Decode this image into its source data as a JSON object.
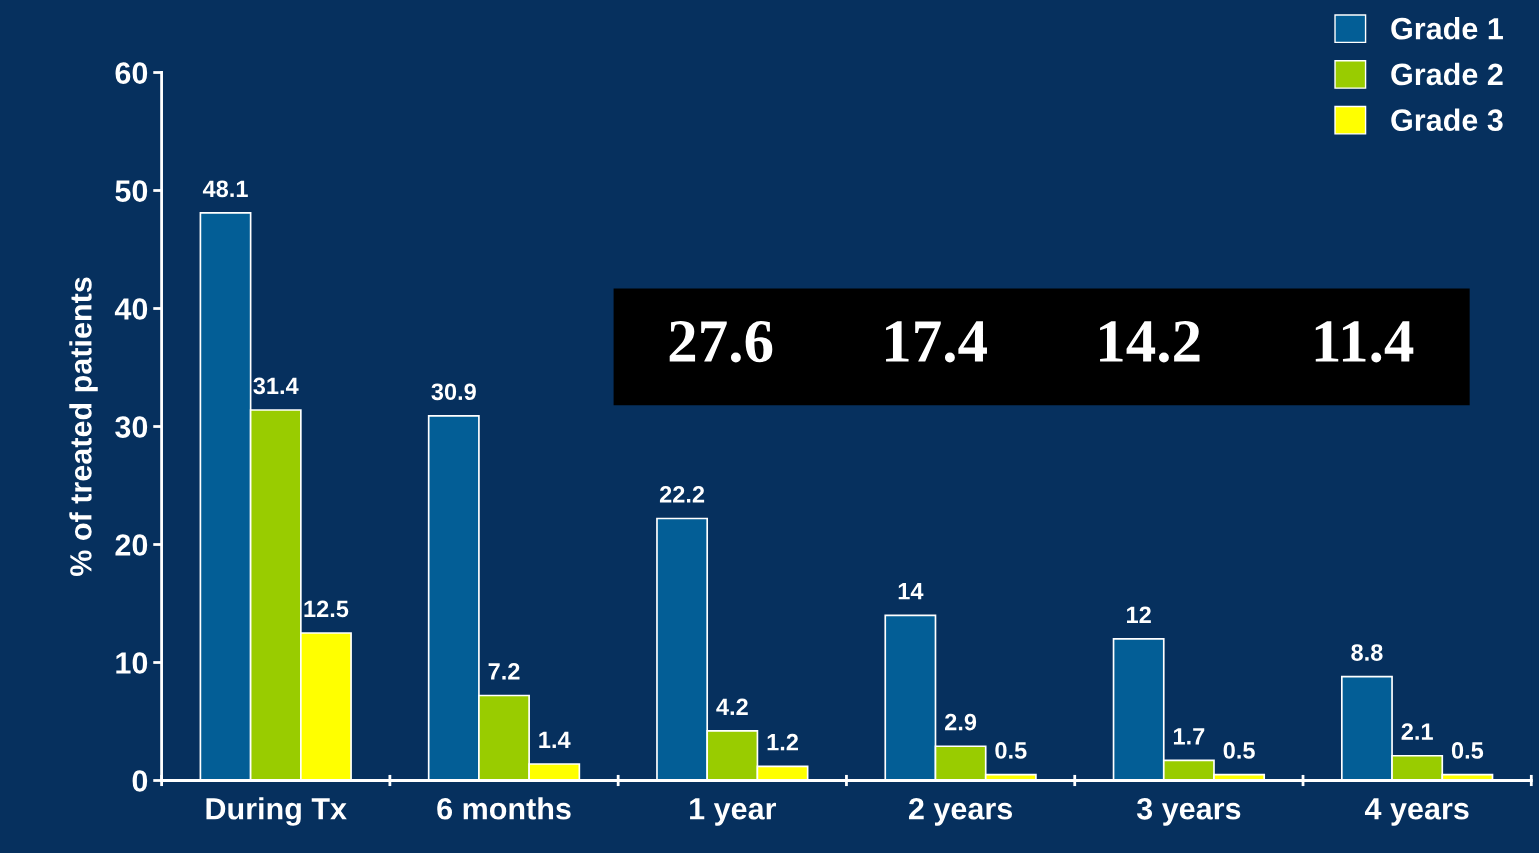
{
  "chart_data": {
    "type": "bar",
    "ylabel": "% of treated patients",
    "categories": [
      "During Tx",
      "6 months",
      "1 year",
      "2 years",
      "3 years",
      "4 years"
    ],
    "series": [
      {
        "name": "Grade 1",
        "color": "#035e96",
        "values": [
          48.1,
          30.9,
          22.2,
          14,
          12,
          8.8
        ]
      },
      {
        "name": "Grade 2",
        "color": "#99cc00",
        "values": [
          31.4,
          7.2,
          4.2,
          2.9,
          1.7,
          2.1
        ]
      },
      {
        "name": "Grade 3",
        "color": "#ffff00",
        "values": [
          12.5,
          1.4,
          1.2,
          0.5,
          0.5,
          0.5
        ]
      }
    ],
    "ylim": [
      0,
      60
    ],
    "yticks": [
      0,
      10,
      20,
      30,
      40,
      50,
      60
    ],
    "data_labels": true,
    "grid": false,
    "legend": "top right",
    "annotations": [
      "27.6",
      "17.4",
      "14.2",
      "11.4"
    ]
  }
}
